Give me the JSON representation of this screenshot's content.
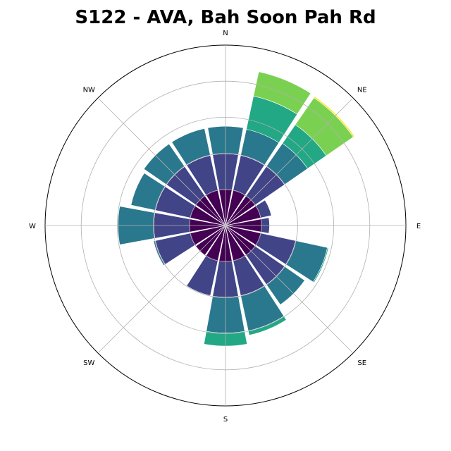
{
  "chart_data": {
    "type": "windrose",
    "title": "S122 - AVA, Bah Soon Pah Rd",
    "direction_labels": [
      "N",
      "NE",
      "E",
      "SE",
      "S",
      "SW",
      "W",
      "NW"
    ],
    "direction_angles_deg": [
      0,
      45,
      90,
      135,
      180,
      225,
      270,
      315
    ],
    "sectors_deg": [
      0,
      22.5,
      45,
      67.5,
      90,
      112.5,
      135,
      157.5,
      180,
      202.5,
      225,
      247.5,
      270,
      292.5,
      315,
      337.5
    ],
    "bin_colors": [
      "#440154",
      "#414487",
      "#2a788e",
      "#22a884",
      "#7ad151",
      "#fde725"
    ],
    "radial_max": 5,
    "radial_gridlines": [
      1,
      2,
      3,
      4,
      5
    ],
    "stacks": [
      [
        1.0,
        0.99,
        0.76,
        0,
        0,
        0
      ],
      [
        1.0,
        0.99,
        0.74,
        0.94,
        0.69,
        0
      ],
      [
        1.0,
        0.99,
        0.78,
        0.63,
        0.91,
        0.04
      ],
      [
        1.0,
        0.3,
        0,
        0,
        0,
        0
      ],
      [
        1.0,
        0.22,
        0,
        0,
        0,
        0
      ],
      [
        1.0,
        0.99,
        0.9,
        0.03,
        0,
        0
      ],
      [
        1.0,
        0.99,
        0.68,
        0,
        0,
        0
      ],
      [
        1.0,
        0.99,
        1.0,
        0.12,
        0,
        0
      ],
      [
        1.0,
        0.99,
        0.99,
        0.36,
        0,
        0
      ],
      [
        1.0,
        0.99,
        0.02,
        0,
        0,
        0
      ],
      [
        1.0,
        0.0,
        0,
        0,
        0,
        0
      ],
      [
        1.0,
        0.99,
        0.05,
        0,
        0,
        0
      ],
      [
        1.0,
        0.99,
        0.99,
        0,
        0,
        0
      ],
      [
        1.0,
        0.99,
        0.69,
        0,
        0,
        0
      ],
      [
        1.0,
        0.99,
        0.76,
        0,
        0,
        0
      ],
      [
        1.0,
        0.99,
        0.76,
        0,
        0,
        0
      ]
    ]
  }
}
